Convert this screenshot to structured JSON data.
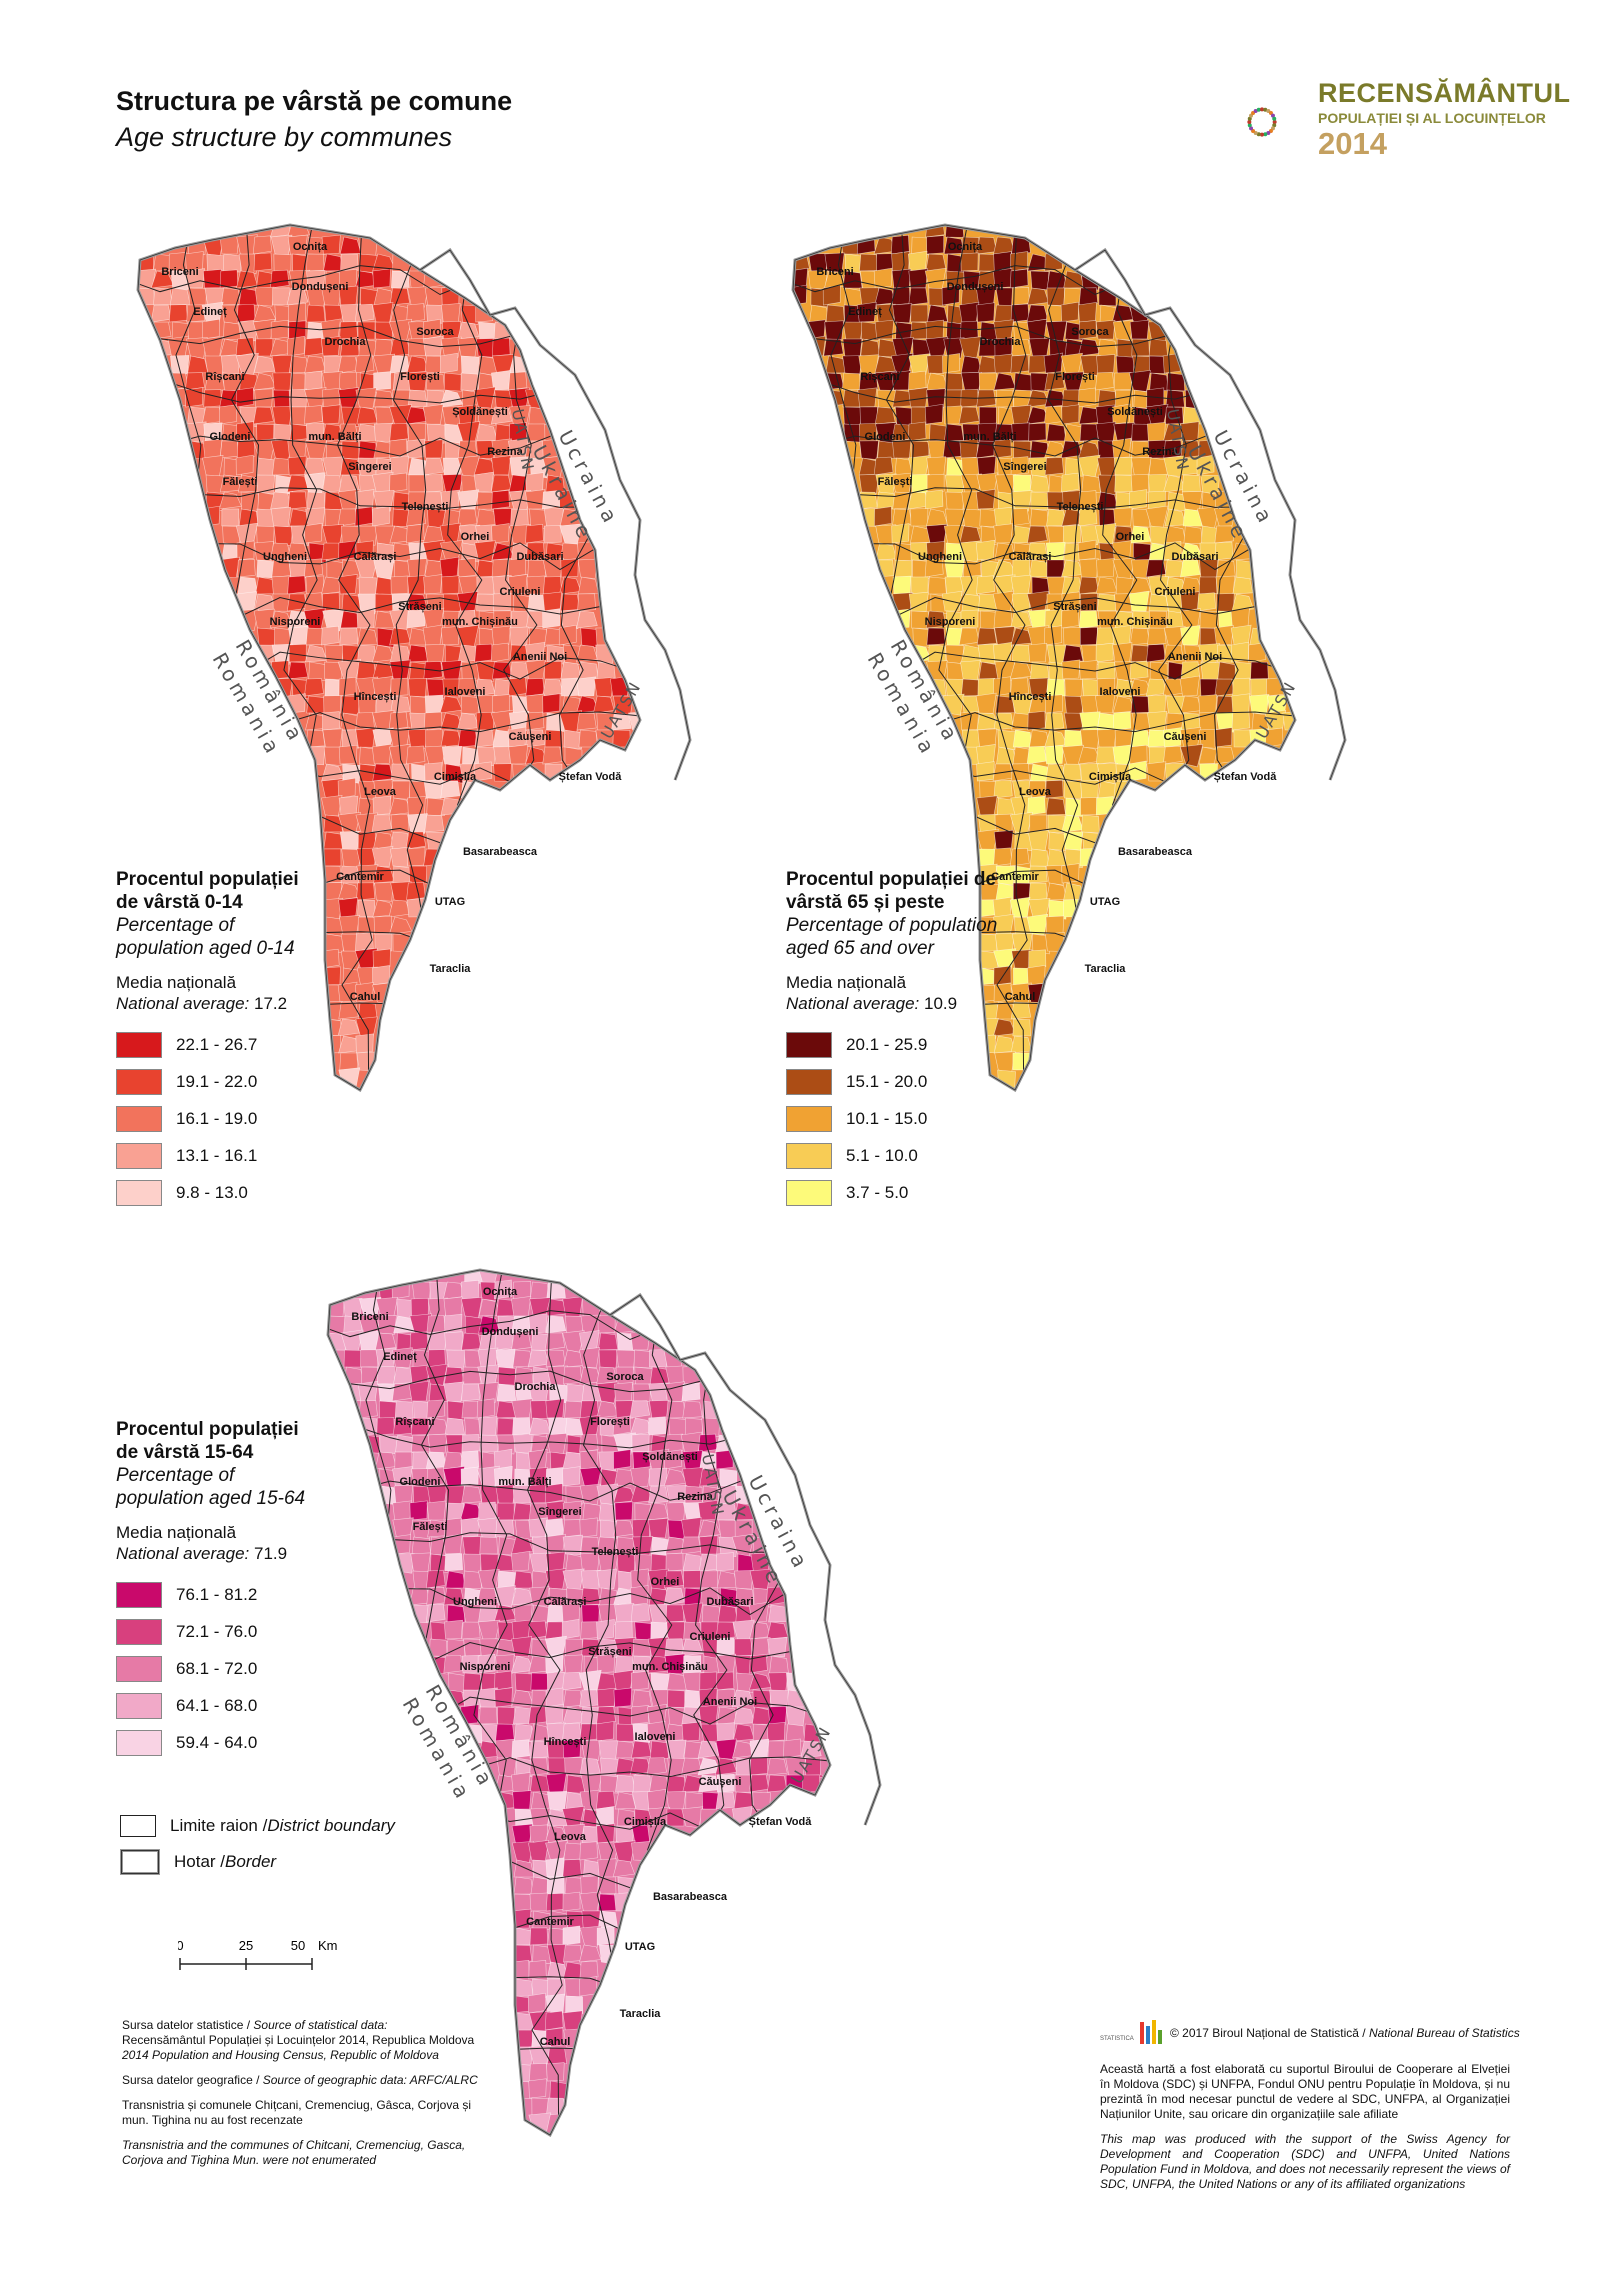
{
  "header": {
    "title": "Structura pe vârstă pe comune",
    "subtitle": "Age structure by communes"
  },
  "logo": {
    "main": "RECENSĂMÂNTUL",
    "sub": "POPULAȚIEI ȘI AL LOCUINȚELOR",
    "year": "2014"
  },
  "map_labels": {
    "ukraine_ro": "Ucraina",
    "ukraine_en": "Ukraine",
    "romania_ro": "România",
    "romania_en": "Romania",
    "uatsn": "UATSN"
  },
  "districts": [
    "Ocnița",
    "Briceni",
    "Dondușeni",
    "Edineț",
    "Drochia",
    "Soroca",
    "Rîșcani",
    "Florești",
    "Șoldănești",
    "Glodeni",
    "mun. Bălți",
    "Sîngerei",
    "Rezina",
    "Fălești",
    "Telenești",
    "Orhei",
    "Ungheni",
    "Călărași",
    "Dubăsari",
    "Criuleni",
    "Strășeni",
    "Nisporeni",
    "mun. Chișinău",
    "Anenii Noi",
    "Hîncești",
    "Ialoveni",
    "Căușeni",
    "Cimișlia",
    "Ștefan Vodă",
    "Leova",
    "Basarabeasca",
    "Cantemir",
    "UTAG",
    "Taraclia",
    "Cahul"
  ],
  "maps": [
    {
      "id": "age-0-14",
      "legend_title_ro_1": "Procentul populației",
      "legend_title_ro_2": "de vârstă 0-14",
      "legend_title_en_1": "Percentage of",
      "legend_title_en_2": "population aged 0-14",
      "average_ro": "Media națională",
      "average_en": "National average:",
      "average_value": "17.2",
      "classes": [
        {
          "label": "22.1 - 26.7",
          "color": "#d7191c"
        },
        {
          "label": "19.1 - 22.0",
          "color": "#e8432f"
        },
        {
          "label": "16.1 - 19.0",
          "color": "#f2735c"
        },
        {
          "label": "13.1 - 16.1",
          "color": "#f9a193"
        },
        {
          "label": "9.8 - 13.0",
          "color": "#fdd0ca"
        }
      ]
    },
    {
      "id": "age-65-plus",
      "legend_title_ro_1": "Procentul populației de",
      "legend_title_ro_2": "vârstă 65 și peste",
      "legend_title_en_1": "Percentage of population",
      "legend_title_en_2": "aged 65 and over",
      "average_ro": "Media națională",
      "average_en": "National average:",
      "average_value": "10.9",
      "classes": [
        {
          "label": "20.1 - 25.9",
          "color": "#6b0a0a"
        },
        {
          "label": "15.1 - 20.0",
          "color": "#ac4d15"
        },
        {
          "label": "10.1 - 15.0",
          "color": "#f0a233"
        },
        {
          "label": "5.1 - 10.0",
          "color": "#f8cc55"
        },
        {
          "label": "3.7 - 5.0",
          "color": "#fdfa7a"
        }
      ]
    },
    {
      "id": "age-15-64",
      "legend_title_ro_1": "Procentul populației",
      "legend_title_ro_2": "de vârstă 15-64",
      "legend_title_en_1": "Percentage of",
      "legend_title_en_2": "population aged 15-64",
      "average_ro": "Media națională",
      "average_en": "National average:",
      "average_value": "71.9",
      "classes": [
        {
          "label": "76.1 - 81.2",
          "color": "#c9096b"
        },
        {
          "label": "72.1 - 76.0",
          "color": "#d8407e"
        },
        {
          "label": "68.1 - 72.0",
          "color": "#e67aa6"
        },
        {
          "label": "64.1 - 68.0",
          "color": "#f1a9c8"
        },
        {
          "label": "59.4 - 64.0",
          "color": "#f9d3e4"
        }
      ]
    }
  ],
  "boundaries": {
    "district": "Limite raion / ",
    "district_en": "District boundary",
    "border": "Hotar / ",
    "border_en": "Border"
  },
  "scalebar": {
    "t0": "0",
    "t1": "25",
    "t2": "50",
    "unit": "Km"
  },
  "sources": {
    "stat_label": "Sursa datelor statistice / ",
    "stat_label_en": "Source of statistical data:",
    "stat_ro": "Recensământul Populației și Locuințelor 2014, Republica Moldova",
    "stat_en": "2014 Population and Housing Census, Republic of Moldova",
    "geo_label": "Sursa datelor geografice / ",
    "geo_label_en": "Source of geographic data: ARFC/ALRC",
    "transnistria_ro": "Transnistria și comunele Chițcani, Cremenciug, Gâsca, Corjova și mun. Tighina nu au fost recenzate",
    "transnistria_en": "Transnistria and the communes of Chitcani, Cremenciug, Gasca, Corjova and Tighina Mun. were not enumerated"
  },
  "copyright": {
    "text": "© 2017 Biroul Național de Statistică / ",
    "text_en": "National Bureau of Statistics"
  },
  "disclaimer": {
    "ro": "Această hartă a fost elaborată cu suportul Biroului de Cooperare al Elveției în Moldova (SDC) și UNFPA, Fondul ONU pentru Populație în Moldova, și nu prezintă în mod necesar punctul de vedere al SDC, UNFPA, al Organizației Națiunilor Unite, sau oricare din organizațiile sale afiliate",
    "en": "This map was produced with the support of the Swiss Agency for Development and Cooperation (SDC) and UNFPA, United Nations Population Fund in Moldova, and does not necessarily represent the views of SDC, UNFPA, the United Nations or any of its affiliated organizations"
  }
}
